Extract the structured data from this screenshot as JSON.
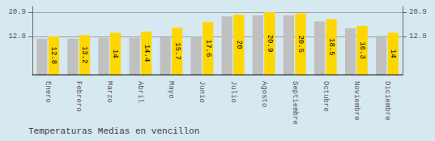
{
  "chart_data": {
    "type": "bar",
    "title": "Temperaturas Medias en vencillon",
    "categories": [
      "Enero",
      "Febrero",
      "Marzo",
      "Abril",
      "Mayo",
      "Junio",
      "Julio",
      "Agosto",
      "Septiembre",
      "Octubre",
      "Noviembre",
      "Diciembre"
    ],
    "series": [
      {
        "color": "#C0C0C0",
        "values": [
          12.0,
          12.0,
          12.3,
          12.3,
          12.5,
          12.7,
          19.5,
          19.8,
          19.8,
          17.8,
          15.5,
          13.0
        ]
      },
      {
        "color": "#FFD700",
        "values": [
          12.8,
          13.2,
          14.0,
          14.4,
          15.7,
          17.6,
          20.0,
          20.9,
          20.5,
          18.5,
          16.3,
          14.0
        ],
        "data_labels": true
      }
    ],
    "ylim": [
      0,
      22.8
    ],
    "yticks": [
      12.8,
      20.9
    ],
    "y2lim": [
      0,
      22.8
    ],
    "y2ticks": [
      12.8,
      20.9
    ],
    "grid": true
  }
}
